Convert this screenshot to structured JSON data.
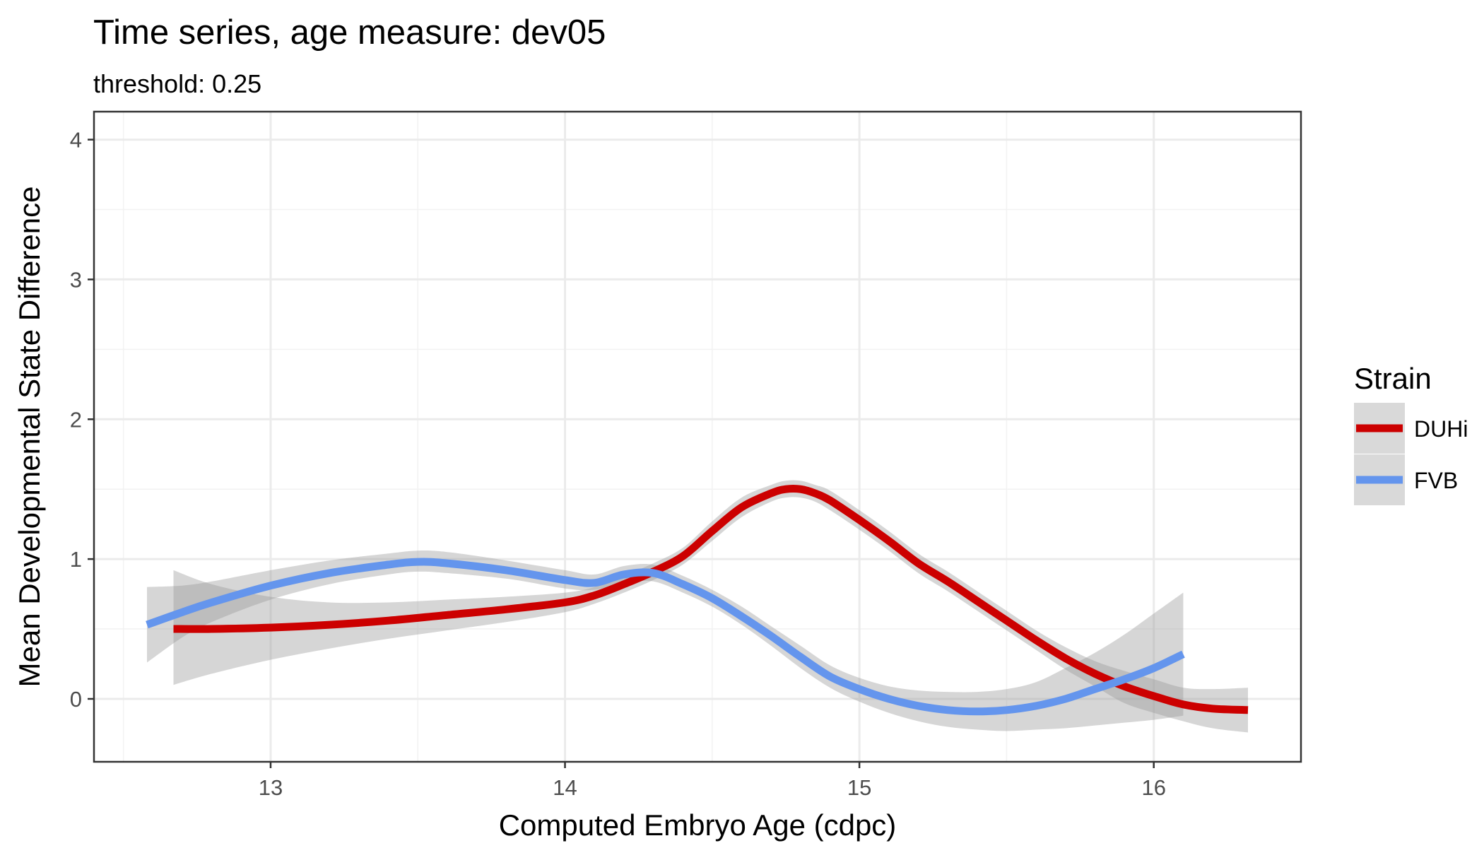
{
  "chart_data": {
    "type": "line",
    "title": "Time series, age measure: dev05",
    "subtitle": "threshold: 0.25",
    "xlabel": "Computed Embryo Age (cdpc)",
    "ylabel": "Mean Developmental State Difference",
    "xlim": [
      12.4,
      16.5
    ],
    "ylim": [
      -0.45,
      4.2
    ],
    "x_ticks": [
      "13",
      "14",
      "15",
      "16"
    ],
    "y_ticks": [
      "0",
      "1",
      "2",
      "3",
      "4"
    ],
    "grid": true,
    "legend": {
      "title": "Strain",
      "position": "right",
      "entries": [
        "DUHi",
        "FVB"
      ]
    },
    "series": [
      {
        "name": "DUHi",
        "color": "#cc0000",
        "x": [
          12.67,
          12.8,
          13.0,
          13.2,
          13.4,
          13.6,
          13.8,
          14.0,
          14.1,
          14.2,
          14.3,
          14.4,
          14.5,
          14.6,
          14.7,
          14.75,
          14.8,
          14.85,
          14.9,
          15.0,
          15.1,
          15.2,
          15.3,
          15.4,
          15.5,
          15.6,
          15.7,
          15.8,
          15.9,
          16.0,
          16.1,
          16.2,
          16.32
        ],
        "y": [
          0.5,
          0.5,
          0.51,
          0.53,
          0.56,
          0.6,
          0.64,
          0.69,
          0.74,
          0.82,
          0.91,
          1.02,
          1.2,
          1.37,
          1.47,
          1.5,
          1.5,
          1.47,
          1.42,
          1.28,
          1.13,
          0.97,
          0.84,
          0.7,
          0.56,
          0.42,
          0.29,
          0.18,
          0.09,
          0.02,
          -0.04,
          -0.07,
          -0.08
        ],
        "ci_lower": [
          0.1,
          0.18,
          0.28,
          0.36,
          0.43,
          0.49,
          0.55,
          0.62,
          0.68,
          0.76,
          0.85,
          0.96,
          1.13,
          1.3,
          1.41,
          1.44,
          1.44,
          1.41,
          1.35,
          1.21,
          1.06,
          0.9,
          0.77,
          0.63,
          0.49,
          0.35,
          0.21,
          0.09,
          -0.03,
          -0.1,
          -0.16,
          -0.21,
          -0.24
        ],
        "ci_upper": [
          0.92,
          0.82,
          0.73,
          0.69,
          0.69,
          0.71,
          0.73,
          0.76,
          0.8,
          0.88,
          0.97,
          1.08,
          1.27,
          1.44,
          1.53,
          1.56,
          1.56,
          1.53,
          1.49,
          1.35,
          1.2,
          1.04,
          0.91,
          0.77,
          0.63,
          0.49,
          0.37,
          0.27,
          0.2,
          0.14,
          0.08,
          0.07,
          0.08
        ]
      },
      {
        "name": "FVB",
        "color": "#6495ed",
        "x": [
          12.58,
          12.7,
          12.8,
          13.0,
          13.2,
          13.4,
          13.5,
          13.6,
          13.8,
          14.0,
          14.1,
          14.2,
          14.3,
          14.4,
          14.5,
          14.6,
          14.7,
          14.8,
          14.9,
          15.0,
          15.1,
          15.2,
          15.3,
          15.4,
          15.5,
          15.6,
          15.7,
          15.8,
          15.9,
          16.0,
          16.1
        ],
        "y": [
          0.53,
          0.62,
          0.69,
          0.81,
          0.9,
          0.96,
          0.98,
          0.97,
          0.92,
          0.85,
          0.83,
          0.89,
          0.9,
          0.82,
          0.72,
          0.59,
          0.45,
          0.3,
          0.16,
          0.07,
          0.0,
          -0.05,
          -0.08,
          -0.09,
          -0.08,
          -0.05,
          0.0,
          0.07,
          0.14,
          0.22,
          0.32
        ],
        "ci_lower": [
          0.26,
          0.44,
          0.55,
          0.71,
          0.82,
          0.89,
          0.91,
          0.9,
          0.86,
          0.79,
          0.78,
          0.83,
          0.84,
          0.76,
          0.66,
          0.53,
          0.38,
          0.22,
          0.08,
          -0.02,
          -0.1,
          -0.16,
          -0.2,
          -0.22,
          -0.23,
          -0.22,
          -0.21,
          -0.19,
          -0.17,
          -0.15,
          -0.12
        ],
        "ci_upper": [
          0.8,
          0.81,
          0.84,
          0.92,
          0.99,
          1.04,
          1.06,
          1.05,
          0.99,
          0.92,
          0.89,
          0.95,
          0.96,
          0.88,
          0.78,
          0.66,
          0.52,
          0.38,
          0.24,
          0.15,
          0.09,
          0.06,
          0.05,
          0.05,
          0.07,
          0.12,
          0.22,
          0.33,
          0.46,
          0.61,
          0.76
        ]
      }
    ]
  }
}
